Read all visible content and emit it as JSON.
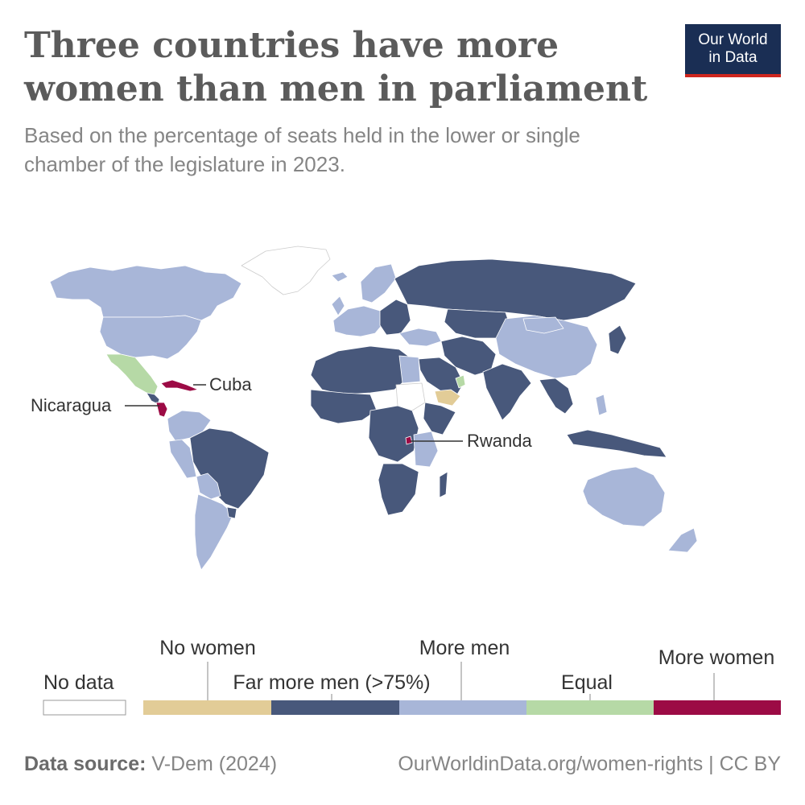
{
  "header": {
    "title_line1": "Three countries have more",
    "title_line2": "women than men in parliament",
    "subtitle_line1": "Based on the percentage of seats held in the lower or single",
    "subtitle_line2": "chamber of the legislature in 2023."
  },
  "logo": {
    "line1": "Our World",
    "line2": "in Data"
  },
  "annotations": {
    "cuba": "Cuba",
    "nicaragua": "Nicaragua",
    "rwanda": "Rwanda"
  },
  "legend": {
    "no_data": "No data",
    "categories": [
      {
        "label": "No women",
        "color": "#e2cc97"
      },
      {
        "label": "Far more men (>75%)",
        "color": "#48587b"
      },
      {
        "label": "More men",
        "color": "#a8b6d8"
      },
      {
        "label": "Equal",
        "color": "#b6d9a6"
      },
      {
        "label": "More women",
        "color": "#9c0b45"
      }
    ]
  },
  "footer": {
    "source_label": "Data source:",
    "source_value": "V-Dem (2024)",
    "right": "OurWorldinData.org/women-rights | CC BY"
  },
  "colors": {
    "no_women": "#e2cc97",
    "far_more_men": "#48587b",
    "more_men": "#a8b6d8",
    "equal": "#b6d9a6",
    "more_women": "#9c0b45",
    "no_data": "#ffffff"
  }
}
